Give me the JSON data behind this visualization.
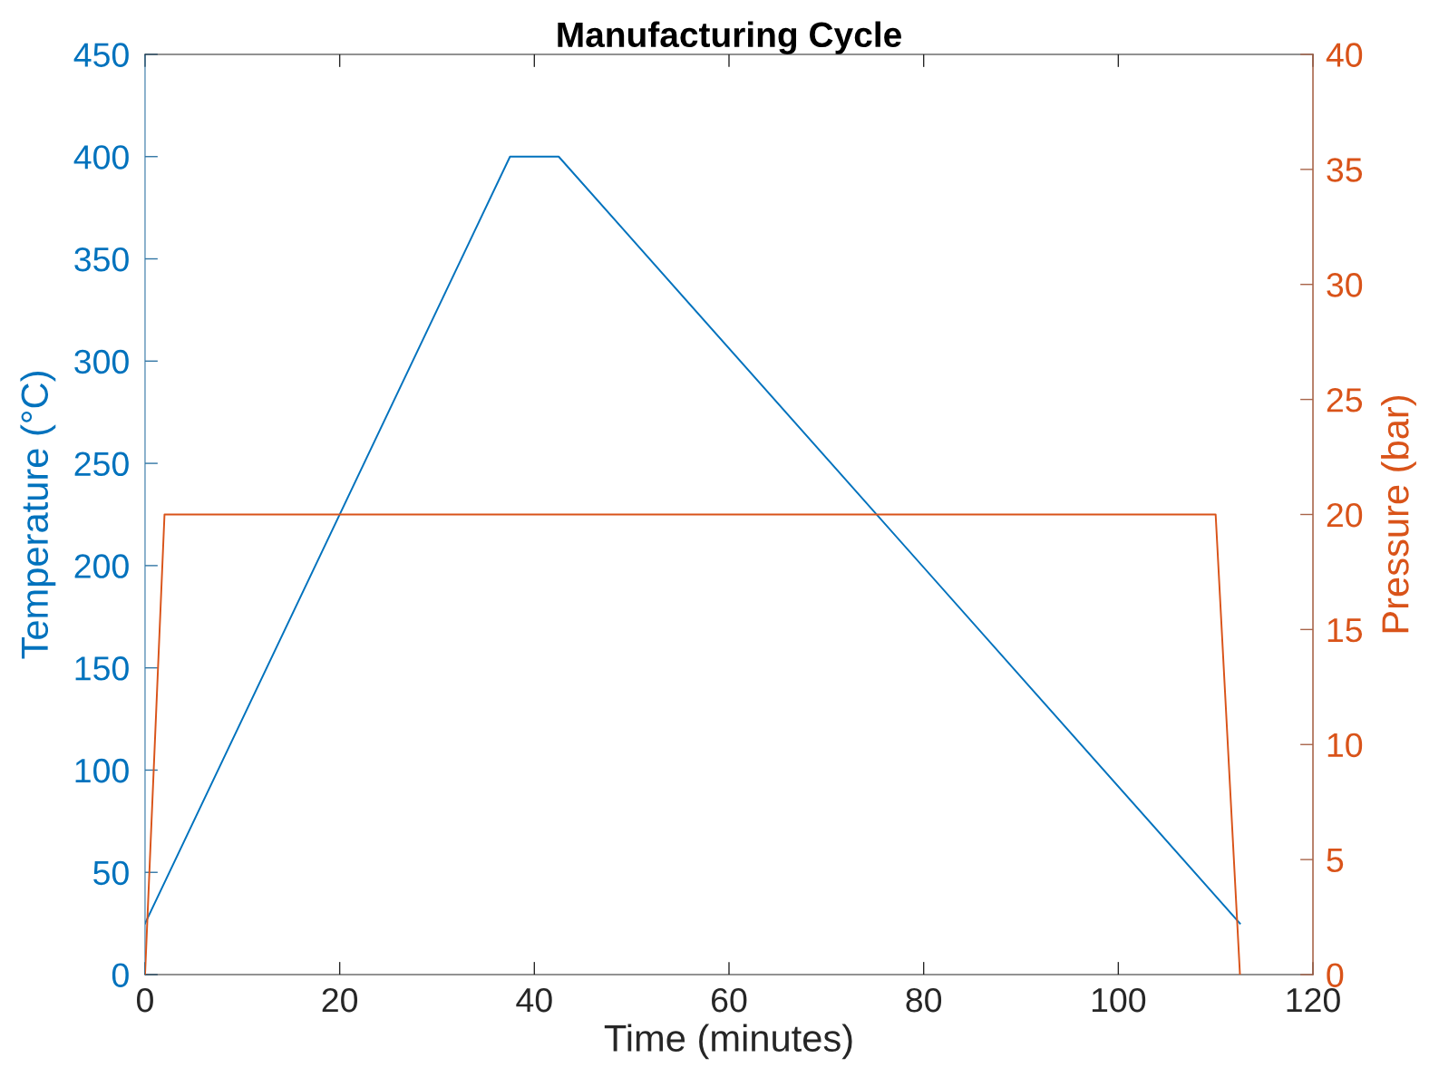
{
  "chart_data": {
    "type": "line",
    "title": "Manufacturing Cycle",
    "xlabel": "Time (minutes)",
    "ylabel": "Temperature (°C)",
    "y2label": "Pressure (bar)",
    "xlim": [
      0,
      120
    ],
    "xticks": [
      0,
      20,
      40,
      60,
      80,
      100,
      120
    ],
    "ylim": [
      0,
      450
    ],
    "yticks": [
      0,
      50,
      100,
      150,
      200,
      250,
      300,
      350,
      400,
      450
    ],
    "y2lim": [
      0,
      40
    ],
    "y2ticks": [
      0,
      5,
      10,
      15,
      20,
      25,
      30,
      35,
      40
    ],
    "grid": false,
    "legend": false,
    "marker": "none",
    "line_style": "solid",
    "series": [
      {
        "color": "#0072bd",
        "x": [
          0,
          37.5,
          42.5,
          112.5
        ],
        "values": [
          25,
          400,
          400,
          25
        ]
      },
      {
        "color": "#d95319",
        "axis": "y2",
        "x": [
          0,
          2,
          110,
          112.5
        ],
        "values": [
          0,
          20,
          20,
          0
        ]
      }
    ]
  }
}
